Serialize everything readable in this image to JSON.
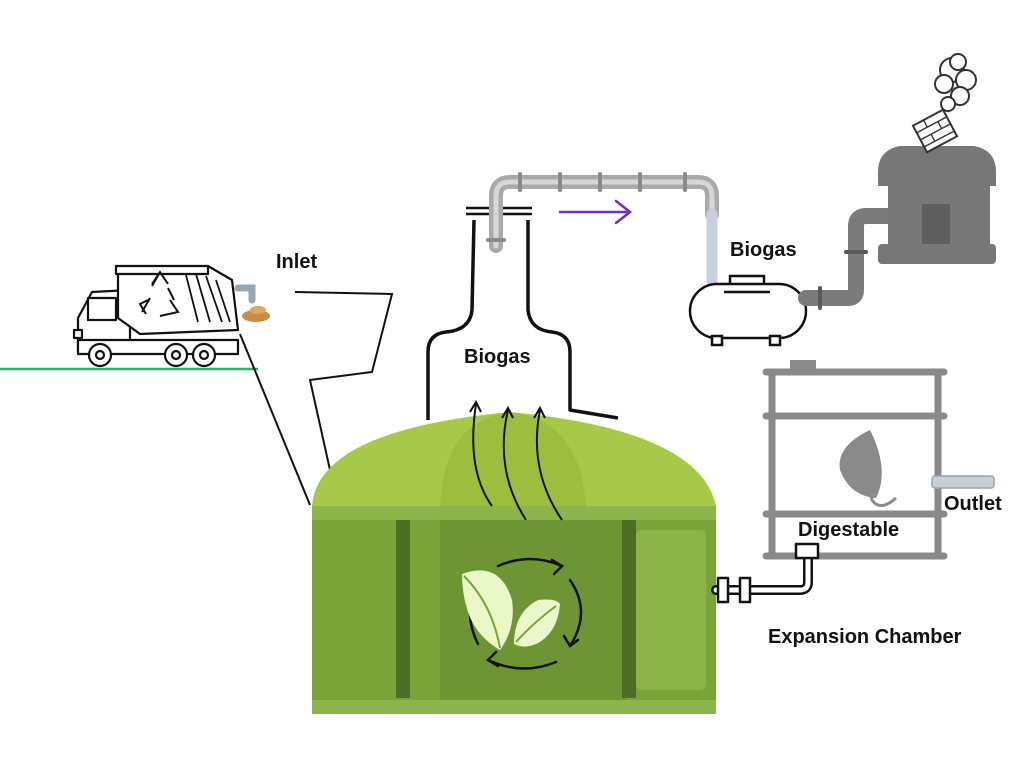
{
  "labels": {
    "inlet": "Inlet",
    "biogas_dome": "Biogas",
    "biogas_tank": "Biogas",
    "outlet": "Outlet",
    "digestable": "Digestable",
    "expansion_chamber": "Expansion Chamber"
  },
  "icons": {
    "truck": "recycling-truck-icon",
    "house": "house-icon",
    "smoke": "smoke-cloud-icon",
    "gas_tank": "gas-tank-icon",
    "leaf": "leaf-icon",
    "recycle": "recycle-arrows-icon",
    "flow_arrow": "flow-arrow-icon"
  },
  "colors": {
    "ground_line": "#27b36b",
    "flow_arrow": "#6a2fd1",
    "digester_body": "#7aa33a",
    "digester_dome": "#a8c84a",
    "pipe_gray": "#b9b9b9",
    "house_gray": "#777777",
    "chamber_gray": "#8a8a8a",
    "leaf_light": "#eaf7c9"
  }
}
